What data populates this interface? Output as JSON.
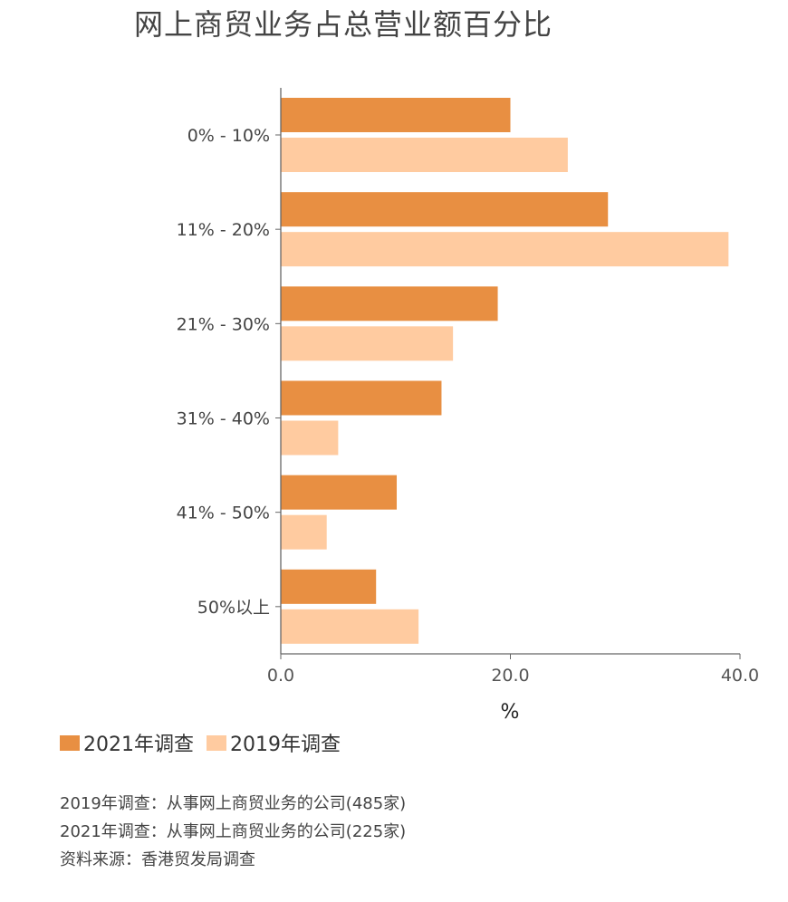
{
  "title": "网上商贸业务占总营业额百分比",
  "colors": {
    "series_2021": "#E88F42",
    "series_2019": "#FFCBA0",
    "axis": "#666666"
  },
  "chart_data": {
    "type": "bar",
    "orientation": "horizontal",
    "categories": [
      "0% - 10%",
      "11% - 20%",
      "21% - 30%",
      "31% - 40%",
      "41% - 50%",
      "50%以上"
    ],
    "series": [
      {
        "name": "2021年调查",
        "values": [
          20.0,
          28.5,
          18.9,
          14.0,
          10.1,
          8.3
        ]
      },
      {
        "name": "2019年调查",
        "values": [
          25.0,
          39.0,
          15.0,
          5.0,
          4.0,
          12.0
        ]
      }
    ],
    "xlabel": "%",
    "ylabel": "",
    "xlim": [
      0,
      40
    ],
    "xticks": [
      "0.0",
      "20.0",
      "40.0"
    ],
    "legend_position": "bottom-left",
    "grid": false
  },
  "legend": {
    "items": [
      "2021年调查",
      "2019年调查"
    ]
  },
  "notes": [
    "2019年调查：从事网上商贸业务的公司(485家)",
    "2021年调查：从事网上商贸业务的公司(225家)",
    "资料来源：香港贸发局调查"
  ]
}
